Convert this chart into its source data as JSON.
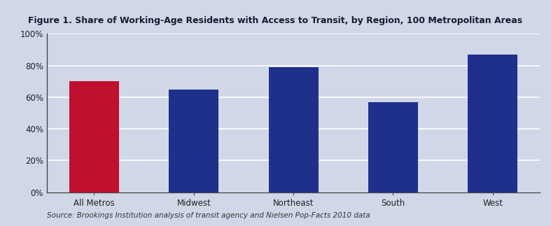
{
  "title": "Figure 1. Share of Working-Age Residents with Access to Transit, by Region, 100 Metropolitan Areas",
  "categories": [
    "All Metros",
    "Midwest",
    "Northeast",
    "South",
    "West"
  ],
  "values": [
    0.7,
    0.65,
    0.79,
    0.57,
    0.87
  ],
  "bar_colors": [
    "#c0102e",
    "#1f2f8c",
    "#1f2f8c",
    "#1f2f8c",
    "#1f2f8c"
  ],
  "background_color": "#d0d8e8",
  "plot_bg_color": "#d0d8e8",
  "ylim": [
    0,
    1.0
  ],
  "yticks": [
    0,
    0.2,
    0.4,
    0.6,
    0.8,
    1.0
  ],
  "ytick_labels": [
    "0%",
    "20%",
    "40%",
    "60%",
    "80%",
    "100%"
  ],
  "grid_color": "#ffffff",
  "source_text": "Source: Brookings Institution analysis of transit agency and Nielsen Pop-Facts 2010 data",
  "title_fontsize": 9.0,
  "tick_fontsize": 8.5,
  "source_fontsize": 7.5,
  "bar_width": 0.5
}
